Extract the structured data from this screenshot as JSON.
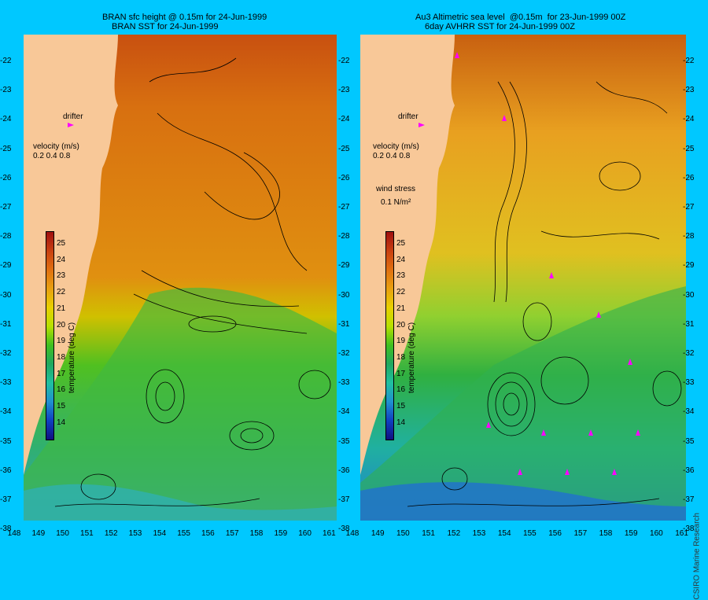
{
  "left_panel": {
    "title_line1": "BRAN sfc height @ 0.15m for 24-Jun-1999",
    "title_line2": "BRAN SST for 24-Jun-1999",
    "drifter_label": "drifter",
    "velocity_label": "velocity (m/s)",
    "velocity_scale": "0.2 0.4 0.8"
  },
  "right_panel": {
    "title_line1": "Au3 Altimetric sea level  @0.15m  for 23-Jun-1999 00Z",
    "title_line2": "6day AVHRR SST for 24-Jun-1999 00Z",
    "drifter_label": "drifter",
    "velocity_label": "velocity (m/s)",
    "velocity_scale": "0.2 0.4 0.8",
    "wind_label": "wind stress",
    "wind_scale": "0.1 N/m²"
  },
  "colorbar": {
    "title": "temperature (deg C)",
    "ticks": [
      "25",
      "24",
      "23",
      "22",
      "21",
      "20",
      "19",
      "18",
      "17",
      "16",
      "15",
      "14"
    ],
    "colors": [
      "#a01010",
      "#c84010",
      "#e07010",
      "#e8a010",
      "#e8d000",
      "#b8e000",
      "#40c020",
      "#20a860",
      "#20c0a0",
      "#2090d0",
      "#1040c0",
      "#101080"
    ]
  },
  "y_axis_labels": [
    "-22",
    "-23",
    "-24",
    "-25",
    "-26",
    "-27",
    "-28",
    "-29",
    "-30",
    "-31",
    "-32",
    "-33",
    "-34",
    "-35",
    "-36",
    "-37",
    "-38"
  ],
  "x_axis_labels": [
    "148",
    "149",
    "150",
    "151",
    "152",
    "153",
    "154",
    "155",
    "156",
    "157",
    "158",
    "159",
    "160",
    "161"
  ],
  "credit": "CSIRO Marine Research",
  "colors": {
    "background": "#00c8ff",
    "land": "#f8c898",
    "drifter": "#ff00ff"
  }
}
